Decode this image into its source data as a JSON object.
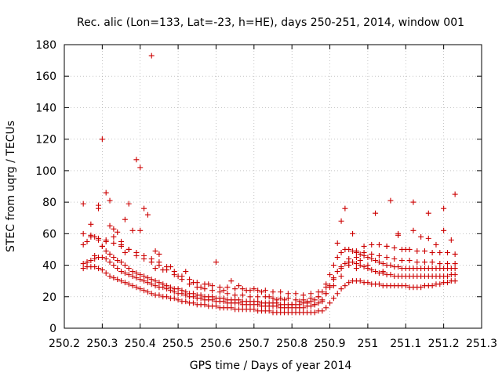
{
  "chart_data": {
    "type": "scatter",
    "title": "Rec. alic (Lon=133, Lat=-23, h=HE), days 250-251, 2014, window 001",
    "xlabel": "GPS time / Days of year 2014",
    "ylabel": "STEC from uqrg / TECUs",
    "xlim": [
      250.2,
      251.3
    ],
    "ylim": [
      0,
      180
    ],
    "xticks": [
      250.2,
      250.3,
      250.4,
      250.5,
      250.6,
      250.7,
      250.8,
      250.9,
      251,
      251.1,
      251.2,
      251.3
    ],
    "xtick_labels": [
      "250.2",
      "250.3",
      "250.4",
      "250.5",
      "250.6",
      "250.7",
      "250.8",
      "250.9",
      "251",
      "251.1",
      "251.2",
      "251.3"
    ],
    "yticks": [
      0,
      20,
      40,
      60,
      80,
      100,
      120,
      140,
      160,
      180
    ],
    "ytick_labels": [
      "0",
      "20",
      "40",
      "60",
      "80",
      "100",
      "120",
      "140",
      "160",
      "180"
    ],
    "grid": true,
    "marker": "+",
    "color": "#cc0000",
    "series": [
      {
        "x": [
          250.25,
          250.26,
          250.27,
          250.28,
          250.29,
          250.3,
          250.31,
          250.32,
          250.33,
          250.34,
          250.35,
          250.36,
          250.37,
          250.38,
          250.39,
          250.4,
          250.41,
          250.42,
          250.43,
          250.44,
          250.45,
          250.46,
          250.47,
          250.48,
          250.49,
          250.5,
          250.51,
          250.52,
          250.53,
          250.54,
          250.55,
          250.56,
          250.57,
          250.58,
          250.59,
          250.6,
          250.61,
          250.62,
          250.63,
          250.64,
          250.65,
          250.66,
          250.67,
          250.68,
          250.69,
          250.7,
          250.71,
          250.72,
          250.73,
          250.74,
          250.75,
          250.76,
          250.77,
          250.78,
          250.79,
          250.8,
          250.81,
          250.82,
          250.83,
          250.84,
          250.85,
          250.86,
          250.87,
          250.88,
          250.89,
          250.9,
          250.91,
          250.92,
          250.93,
          250.94,
          250.95,
          250.96,
          250.97,
          250.98,
          250.99,
          251.0,
          251.01,
          251.02,
          251.03,
          251.04,
          251.05,
          251.06,
          251.07,
          251.08,
          251.09,
          251.1,
          251.11,
          251.12,
          251.13,
          251.14,
          251.15,
          251.16,
          251.17,
          251.18,
          251.19,
          251.2,
          251.21,
          251.22,
          251.23
        ],
        "y": [
          38,
          39,
          39,
          39,
          38,
          37,
          35,
          33,
          32,
          31,
          30,
          29,
          28,
          27,
          26,
          25,
          24,
          23,
          22,
          21,
          21,
          20,
          20,
          19,
          19,
          18,
          17,
          17,
          16,
          16,
          15,
          15,
          15,
          14,
          14,
          14,
          13,
          13,
          13,
          13,
          12,
          12,
          12,
          12,
          12,
          12,
          11,
          11,
          11,
          11,
          10,
          10,
          10,
          10,
          10,
          10,
          10,
          10,
          10,
          10,
          10,
          10,
          11,
          11,
          13,
          16,
          19,
          22,
          25,
          27,
          29,
          30,
          30,
          30,
          29,
          29,
          28,
          28,
          28,
          27,
          27,
          27,
          27,
          27,
          27,
          27,
          26,
          26,
          26,
          26,
          27,
          27,
          27,
          28,
          28,
          29,
          29,
          30,
          30
        ]
      },
      {
        "x": [
          250.25,
          250.26,
          250.27,
          250.28,
          250.29,
          250.3,
          250.31,
          250.32,
          250.33,
          250.34,
          250.35,
          250.36,
          250.37,
          250.38,
          250.39,
          250.4,
          250.41,
          250.42,
          250.43,
          250.44,
          250.45,
          250.46,
          250.47,
          250.48,
          250.49,
          250.5,
          250.51,
          250.52,
          250.53,
          250.54,
          250.55,
          250.56,
          250.57,
          250.58,
          250.59,
          250.6,
          250.61,
          250.62,
          250.63,
          250.64,
          250.65,
          250.66,
          250.67,
          250.68,
          250.69,
          250.7,
          250.71,
          250.72,
          250.73,
          250.74,
          250.75,
          250.76,
          250.77,
          250.78,
          250.79,
          250.8,
          250.81,
          250.82,
          250.83,
          250.84,
          250.85,
          250.86,
          250.87,
          250.88,
          250.89,
          250.9,
          250.91,
          250.92,
          250.93,
          250.94,
          250.95,
          250.96,
          250.97,
          250.98,
          250.99,
          251.0,
          251.01,
          251.02,
          251.03,
          251.04,
          251.05,
          251.06,
          251.07,
          251.08,
          251.09,
          251.1,
          251.11,
          251.12,
          251.13,
          251.14,
          251.15,
          251.16,
          251.17,
          251.18,
          251.19,
          251.2,
          251.21,
          251.22,
          251.23
        ],
        "y": [
          41,
          42,
          43,
          44,
          45,
          45,
          44,
          42,
          40,
          38,
          36,
          35,
          34,
          33,
          32,
          31,
          30,
          29,
          28,
          27,
          26,
          26,
          25,
          24,
          23,
          22,
          22,
          21,
          20,
          20,
          19,
          19,
          18,
          18,
          18,
          17,
          17,
          17,
          16,
          16,
          16,
          16,
          15,
          15,
          15,
          15,
          15,
          14,
          14,
          14,
          14,
          14,
          13,
          13,
          13,
          13,
          13,
          13,
          13,
          14,
          14,
          15,
          16,
          18,
          22,
          27,
          32,
          36,
          39,
          41,
          42,
          42,
          41,
          40,
          39,
          38,
          37,
          36,
          35,
          35,
          34,
          34,
          33,
          33,
          33,
          33,
          33,
          33,
          33,
          33,
          33,
          33,
          33,
          33,
          33,
          33,
          33,
          34,
          34
        ]
      },
      {
        "x": [
          250.25,
          250.26,
          250.27,
          250.28,
          250.29,
          250.3,
          250.31,
          250.32,
          250.33,
          250.34,
          250.35,
          250.36,
          250.37,
          250.38,
          250.39,
          250.4,
          250.41,
          250.42,
          250.43,
          250.44,
          250.45,
          250.46,
          250.47,
          250.48,
          250.49,
          250.5,
          250.51,
          250.52,
          250.53,
          250.54,
          250.55,
          250.56,
          250.57,
          250.58,
          250.59,
          250.6,
          250.61,
          250.62,
          250.63,
          250.64,
          250.65,
          250.66,
          250.67,
          250.68,
          250.69,
          250.7,
          250.71,
          250.72,
          250.73,
          250.74,
          250.75,
          250.76,
          250.77,
          250.78,
          250.79,
          250.8,
          250.81,
          250.82,
          250.83,
          250.84,
          250.85,
          250.86,
          250.87,
          250.88,
          250.89,
          250.9,
          250.91,
          250.92,
          250.93,
          250.94,
          250.95,
          250.96,
          250.97,
          250.98,
          250.99,
          251.0,
          251.01,
          251.02,
          251.03,
          251.04,
          251.05,
          251.06,
          251.07,
          251.08,
          251.09,
          251.1,
          251.11,
          251.12,
          251.13,
          251.14,
          251.15,
          251.16,
          251.17,
          251.18,
          251.19,
          251.2,
          251.21,
          251.22,
          251.23
        ],
        "y": [
          53,
          55,
          58,
          58,
          56,
          52,
          49,
          47,
          45,
          43,
          42,
          40,
          38,
          36,
          35,
          34,
          33,
          32,
          31,
          30,
          29,
          28,
          27,
          26,
          25,
          25,
          24,
          23,
          22,
          22,
          21,
          21,
          20,
          20,
          20,
          19,
          19,
          19,
          18,
          18,
          18,
          18,
          17,
          17,
          17,
          17,
          17,
          16,
          16,
          16,
          16,
          16,
          15,
          15,
          15,
          15,
          15,
          15,
          16,
          16,
          17,
          18,
          20,
          23,
          28,
          34,
          40,
          45,
          48,
          50,
          50,
          49,
          48,
          47,
          46,
          45,
          44,
          43,
          42,
          41,
          40,
          40,
          39,
          39,
          38,
          38,
          38,
          38,
          38,
          38,
          38,
          38,
          38,
          38,
          38,
          38,
          38,
          38,
          38
        ]
      },
      {
        "x": [
          250.26,
          250.28,
          250.3,
          250.31,
          250.33,
          250.35,
          250.37,
          250.39,
          250.41,
          250.43,
          250.45,
          250.47,
          250.49,
          250.51,
          250.53,
          250.55,
          250.57,
          250.59,
          250.61,
          250.63,
          250.65,
          250.67,
          250.69,
          250.71,
          250.73,
          250.75,
          250.77,
          250.79,
          250.81,
          250.83,
          250.85,
          250.87,
          250.89,
          250.91,
          250.93,
          250.95,
          250.97,
          250.99,
          251.01,
          251.03,
          251.05,
          251.07,
          251.09,
          251.11,
          251.13,
          251.15,
          251.17,
          251.19,
          251.21,
          251.23
        ],
        "y": [
          42,
          46,
          52,
          56,
          58,
          55,
          50,
          46,
          44,
          42,
          40,
          37,
          34,
          31,
          28,
          26,
          25,
          24,
          23,
          22,
          21,
          21,
          20,
          20,
          20,
          19,
          19,
          19,
          18,
          18,
          19,
          20,
          22,
          27,
          33,
          40,
          45,
          48,
          47,
          46,
          45,
          44,
          43,
          43,
          42,
          42,
          42,
          41,
          41,
          41
        ]
      },
      {
        "x": [
          250.25,
          250.27,
          250.29,
          250.31,
          250.33,
          250.35,
          250.37,
          250.39,
          250.41,
          250.43,
          250.45,
          250.47,
          250.49,
          250.51,
          250.53,
          250.55,
          250.57,
          250.59,
          250.61,
          250.63,
          250.65,
          250.67,
          250.69,
          250.71,
          250.73,
          250.75,
          250.77,
          250.79,
          250.81,
          250.83,
          250.85,
          250.87,
          250.89,
          250.91,
          250.93,
          250.95,
          250.97,
          250.99,
          251.01,
          251.03,
          251.05,
          251.07,
          251.09,
          251.11,
          251.13,
          251.15,
          251.17,
          251.19,
          251.21,
          251.23
        ],
        "y": [
          60,
          59,
          57,
          55,
          54,
          52,
          50,
          48,
          46,
          44,
          42,
          39,
          36,
          33,
          31,
          29,
          28,
          27,
          26,
          26,
          25,
          25,
          24,
          24,
          24,
          23,
          23,
          22,
          22,
          21,
          22,
          23,
          26,
          31,
          38,
          44,
          49,
          52,
          53,
          53,
          52,
          51,
          50,
          50,
          49,
          49,
          48,
          48,
          48,
          47
        ]
      },
      {
        "x": [
          250.25,
          250.27,
          250.29,
          250.3,
          250.31,
          250.32,
          250.33,
          250.34,
          250.35,
          250.36,
          250.37,
          250.38,
          250.39,
          250.4,
          250.41,
          250.42,
          250.43,
          250.44,
          250.45,
          250.46,
          250.48,
          250.5,
          250.52,
          250.54,
          250.56,
          250.58,
          250.6,
          250.62,
          250.64,
          250.66,
          250.68,
          250.7,
          250.72,
          250.74,
          250.76,
          250.78,
          250.8,
          250.82,
          250.84,
          250.86,
          250.88,
          250.9,
          250.92,
          250.94,
          250.96,
          250.98,
          251.0,
          251.02,
          251.04,
          251.06,
          251.08,
          251.1,
          251.12,
          251.14,
          251.16,
          251.18,
          251.2,
          251.22,
          251.23,
          250.29,
          250.32,
          250.36,
          250.4,
          250.44,
          250.93,
          250.97,
          251.05,
          251.12,
          251.2,
          251.16,
          251.08
        ],
        "y": [
          79,
          66,
          76,
          120,
          86,
          81,
          63,
          61,
          53,
          69,
          79,
          62,
          107,
          102,
          76,
          72,
          173,
          49,
          47,
          37,
          39,
          33,
          36,
          29,
          26,
          28,
          42,
          24,
          30,
          27,
          24,
          25,
          23,
          20,
          18,
          18,
          15,
          17,
          17,
          15,
          17,
          26,
          54,
          76,
          60,
          43,
          40,
          73,
          36,
          81,
          60,
          50,
          80,
          58,
          73,
          53,
          76,
          56,
          85,
          78,
          65,
          48,
          62,
          38,
          68,
          38,
          52,
          62,
          62,
          57,
          59
        ]
      }
    ]
  }
}
